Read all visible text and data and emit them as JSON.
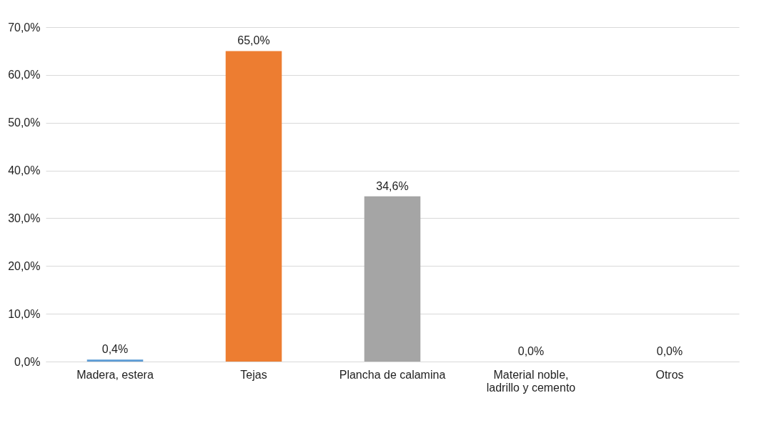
{
  "chart_data": {
    "type": "bar",
    "categories": [
      "Madera, estera",
      "Tejas",
      "Plancha de calamina",
      "Material noble, ladrillo y cemento",
      "Otros"
    ],
    "values": [
      0.4,
      65.0,
      34.6,
      0.0,
      0.0
    ],
    "colors": [
      "#5b9bd5",
      "#ed7d31",
      "#a5a5a5",
      "#ffc000",
      "#4472c4"
    ],
    "value_labels": [
      "0,4%",
      "65,0%",
      "34,6%",
      "0,0%",
      "0,0%"
    ],
    "ylim": [
      0,
      70
    ],
    "yticks": [
      {
        "value": 0,
        "label": "0,0%"
      },
      {
        "value": 10,
        "label": "10,0%"
      },
      {
        "value": 20,
        "label": "20,0%"
      },
      {
        "value": 30,
        "label": "30,0%"
      },
      {
        "value": 40,
        "label": "40,0%"
      },
      {
        "value": 50,
        "label": "50,0%"
      },
      {
        "value": 60,
        "label": "60,0%"
      },
      {
        "value": 70,
        "label": "70,0%"
      }
    ],
    "grid": "y",
    "legend": false
  }
}
